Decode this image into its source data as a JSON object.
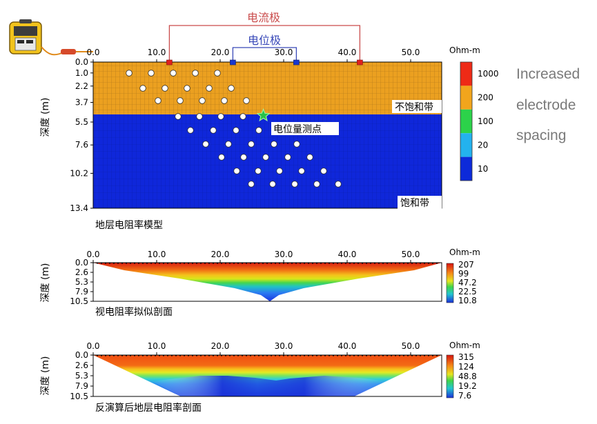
{
  "top": {
    "current_electrode_label": "电流极",
    "potential_electrode_label": "电位极",
    "x_ticks": [
      "0.0",
      "10.0",
      "20.0",
      "30.0",
      "40.0",
      "50.0"
    ],
    "x_tick_values": [
      0,
      10,
      20,
      30,
      40,
      50
    ],
    "depth_ticks": [
      "0.0",
      "1.0",
      "2.2",
      "3.7",
      "5.5",
      "7.6",
      "10.2",
      "13.4"
    ],
    "depth_tick_values": [
      0,
      1.0,
      2.2,
      3.7,
      5.5,
      7.6,
      10.2,
      13.4
    ],
    "ylabel": "深度 (m)",
    "unit": "Ohm-m",
    "legend_values": [
      "1000",
      "200",
      "100",
      "20",
      "10"
    ],
    "legend_colors": [
      "#ee2a16",
      "#f2a51c",
      "#2cd24a",
      "#23b2ee",
      "#0d2ad9"
    ],
    "unsaturated_label": "不饱和带",
    "saturated_label": "饱和带",
    "measure_point_label": "电位量测点",
    "caption": "地层电阻率模型",
    "boundary_depth": 4.8,
    "layer_colors": {
      "upper": "#eba020",
      "lower": "#0f27da"
    },
    "electrode_positions": {
      "current": [
        12.0,
        42.0
      ],
      "potential": [
        22.0,
        32.0
      ]
    },
    "measure_point": {
      "x": 26.8,
      "depth": 4.9
    }
  },
  "mid": {
    "x_ticks": [
      "0.0",
      "10.0",
      "20.0",
      "30.0",
      "40.0",
      "50.0"
    ],
    "depth_ticks": [
      "0.0",
      "2.6",
      "5.3",
      "7.9",
      "10.5"
    ],
    "ylabel": "深度 (m)",
    "unit": "Ohm-m",
    "legend_values": [
      "207",
      "99",
      "47.2",
      "22.5",
      "10.8"
    ],
    "caption": "视电阻率拟似剖面"
  },
  "bottom": {
    "x_ticks": [
      "0.0",
      "10.0",
      "20.0",
      "30.0",
      "40.0",
      "50.0"
    ],
    "depth_ticks": [
      "0.0",
      "2.6",
      "5.3",
      "7.9",
      "10.5"
    ],
    "ylabel": "深度 (m)",
    "unit": "Ohm-m",
    "legend_values": [
      "315",
      "124",
      "48.8",
      "19.2",
      "7.6"
    ],
    "caption": "反演算后地层电阻率剖面"
  },
  "side_text": [
    "Increased",
    "electrode",
    "spacing"
  ]
}
